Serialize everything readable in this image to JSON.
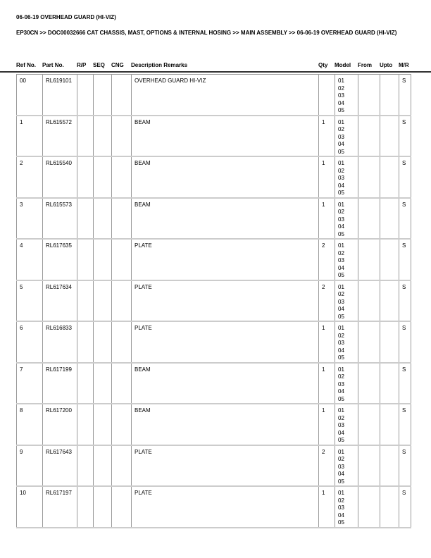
{
  "title": "06-06-19 OVERHEAD GUARD (HI-VIZ)",
  "breadcrumb": "EP30CN >> DOC00032666 CAT CHASSIS, MAST, OPTIONS & INTERNAL HOSING >> MAIN ASSEMBLY >> 06-06-19 OVERHEAD GUARD (HI-VIZ)",
  "headers": {
    "ref": "Ref No.",
    "part": "Part No.",
    "rp": "R/P",
    "seq": "SEQ",
    "cng": "CNG",
    "desc": "Description Remarks",
    "qty": "Qty",
    "model": "Model",
    "from": "From",
    "upto": "Upto",
    "mr": "M/R"
  },
  "rows": [
    {
      "ref": "00",
      "part": "RL619101",
      "desc": "OVERHEAD GUARD HI-VIZ",
      "qty": "",
      "models": [
        "01",
        "02",
        "03",
        "04",
        "05"
      ],
      "mr": "S"
    },
    {
      "ref": "1",
      "part": "RL615572",
      "desc": "BEAM",
      "qty": "1",
      "models": [
        "01",
        "02",
        "03",
        "04",
        "05"
      ],
      "mr": "S"
    },
    {
      "ref": "2",
      "part": "RL615540",
      "desc": "BEAM",
      "qty": "1",
      "models": [
        "01",
        "02",
        "03",
        "04",
        "05"
      ],
      "mr": "S"
    },
    {
      "ref": "3",
      "part": "RL615573",
      "desc": "BEAM",
      "qty": "1",
      "models": [
        "01",
        "02",
        "03",
        "04",
        "05"
      ],
      "mr": "S"
    },
    {
      "ref": "4",
      "part": "RL617635",
      "desc": "PLATE",
      "qty": "2",
      "models": [
        "01",
        "02",
        "03",
        "04",
        "05"
      ],
      "mr": "S"
    },
    {
      "ref": "5",
      "part": "RL617634",
      "desc": "PLATE",
      "qty": "2",
      "models": [
        "01",
        "02",
        "03",
        "04",
        "05"
      ],
      "mr": "S"
    },
    {
      "ref": "6",
      "part": "RL616833",
      "desc": "PLATE",
      "qty": "1",
      "models": [
        "01",
        "02",
        "03",
        "04",
        "05"
      ],
      "mr": "S"
    },
    {
      "ref": "7",
      "part": "RL617199",
      "desc": "BEAM",
      "qty": "1",
      "models": [
        "01",
        "02",
        "03",
        "04",
        "05"
      ],
      "mr": "S"
    },
    {
      "ref": "8",
      "part": "RL617200",
      "desc": "BEAM",
      "qty": "1",
      "models": [
        "01",
        "02",
        "03",
        "04",
        "05"
      ],
      "mr": "S"
    },
    {
      "ref": "9",
      "part": "RL617643",
      "desc": "PLATE",
      "qty": "2",
      "models": [
        "01",
        "02",
        "03",
        "04",
        "05"
      ],
      "mr": "S"
    },
    {
      "ref": "10",
      "part": "RL617197",
      "desc": "PLATE",
      "qty": "1",
      "models": [
        "01",
        "02",
        "03",
        "04",
        "05"
      ],
      "mr": "S"
    }
  ]
}
